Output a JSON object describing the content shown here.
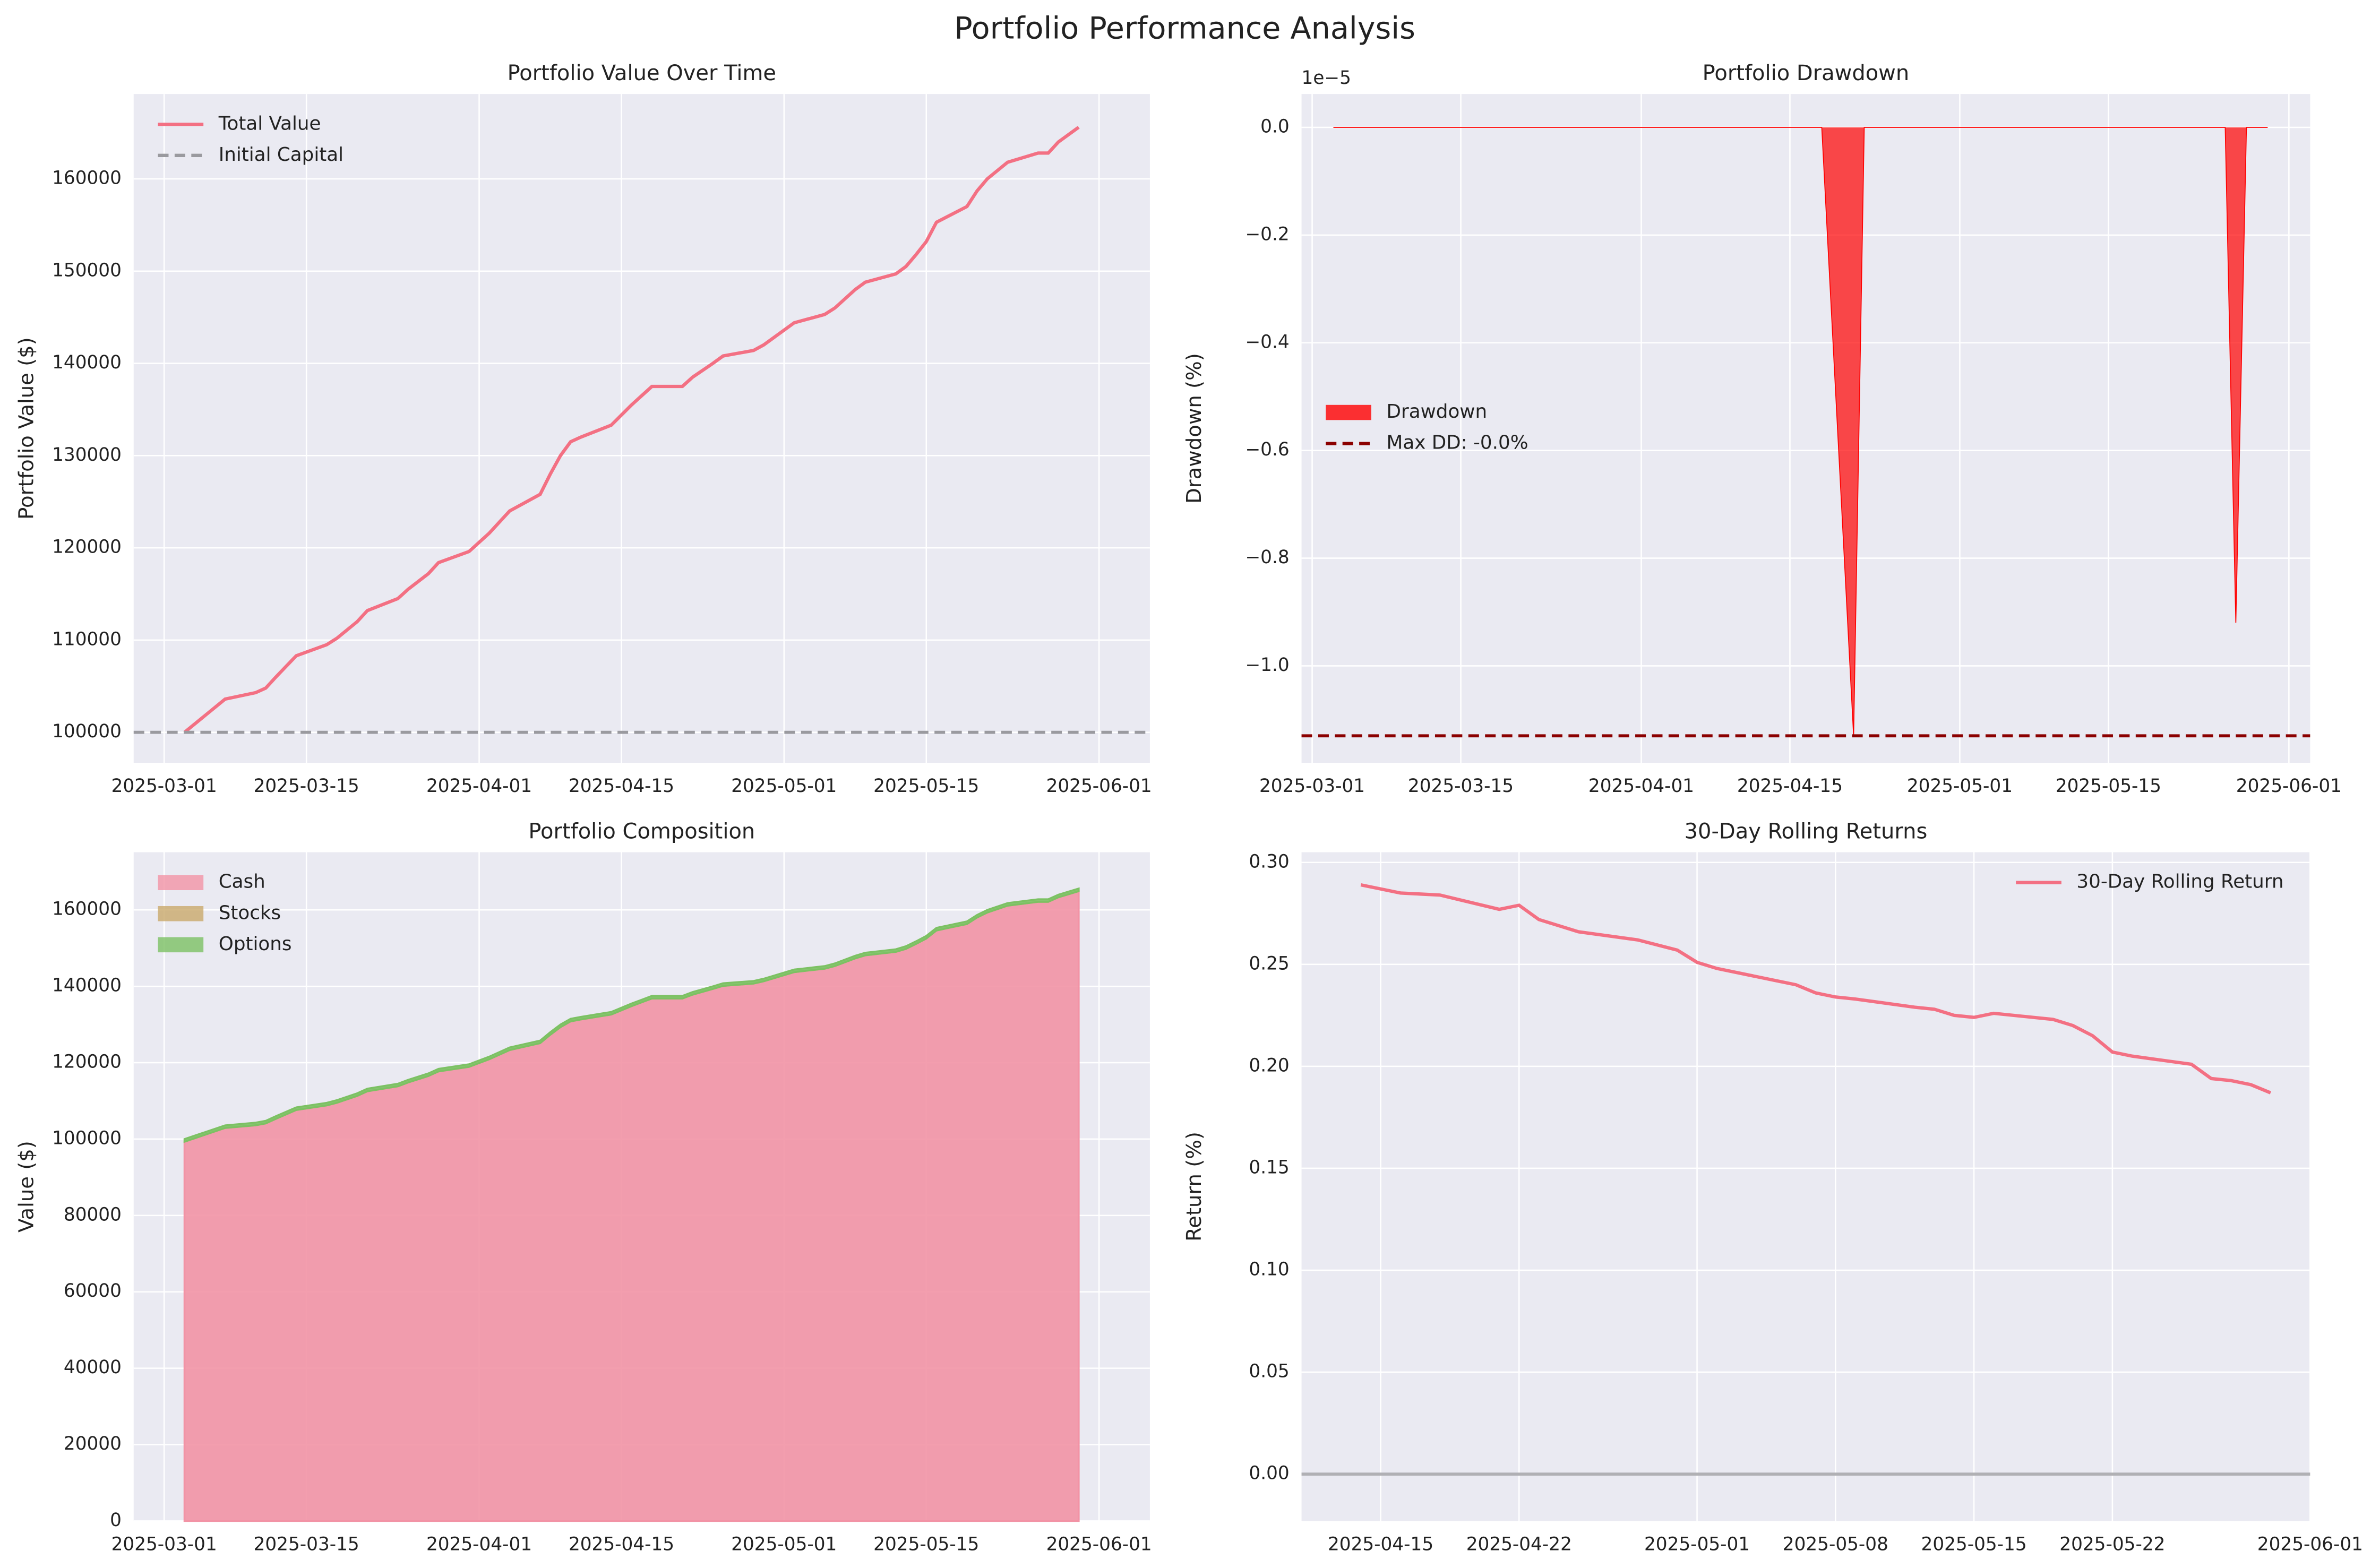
{
  "title": "Portfolio Performance Analysis",
  "chart_data": [
    {
      "type": "line",
      "title": "Portfolio Value Over Time",
      "ylabel": "Portfolio Value ($)",
      "legend": "upper left",
      "grid": true,
      "x": [
        "2025-03-03",
        "2025-03-05",
        "2025-03-07",
        "2025-03-10",
        "2025-03-11",
        "2025-03-12",
        "2025-03-14",
        "2025-03-17",
        "2025-03-18",
        "2025-03-20",
        "2025-03-21",
        "2025-03-24",
        "2025-03-25",
        "2025-03-27",
        "2025-03-28",
        "2025-03-31",
        "2025-04-02",
        "2025-04-04",
        "2025-04-07",
        "2025-04-08",
        "2025-04-09",
        "2025-04-10",
        "2025-04-11",
        "2025-04-14",
        "2025-04-16",
        "2025-04-17",
        "2025-04-18",
        "2025-04-21",
        "2025-04-22",
        "2025-04-24",
        "2025-04-25",
        "2025-04-28",
        "2025-04-29",
        "2025-04-30",
        "2025-05-02",
        "2025-05-05",
        "2025-05-06",
        "2025-05-08",
        "2025-05-09",
        "2025-05-12",
        "2025-05-13",
        "2025-05-14",
        "2025-05-15",
        "2025-05-16",
        "2025-05-19",
        "2025-05-20",
        "2025-05-21",
        "2025-05-23",
        "2025-05-26",
        "2025-05-27",
        "2025-05-28",
        "2025-05-29",
        "2025-05-30"
      ],
      "series": [
        {
          "name": "Total Value",
          "color": "#f37083",
          "values": [
            100000,
            101800,
            103600,
            104300,
            104800,
            106000,
            108300,
            109500,
            110200,
            112000,
            113200,
            114500,
            115500,
            117200,
            118400,
            119600,
            121600,
            124000,
            125800,
            128000,
            130000,
            131500,
            132000,
            133300,
            135500,
            136500,
            137500,
            137500,
            138500,
            140000,
            140800,
            141400,
            142000,
            142800,
            144400,
            145300,
            146000,
            148000,
            148800,
            149700,
            150500,
            151800,
            153200,
            155300,
            157000,
            158700,
            160000,
            161800,
            162800,
            162800,
            164000,
            164800,
            165600
          ]
        }
      ],
      "hlines": [
        {
          "name": "Initial Capital",
          "value": 100000,
          "color": "#9a9a9f",
          "dashed": true
        }
      ],
      "xlim": [
        "2025-02-26",
        "2025-06-06"
      ],
      "xticks": [
        "2025-03-01",
        "2025-03-15",
        "2025-04-01",
        "2025-04-15",
        "2025-05-01",
        "2025-05-15",
        "2025-06-01"
      ],
      "ylim": [
        96700,
        169200
      ],
      "yticks": [
        100000,
        110000,
        120000,
        130000,
        140000,
        150000,
        160000
      ]
    },
    {
      "type": "area",
      "title": "Portfolio Drawdown",
      "ylabel": "Drawdown (%)",
      "offset_text": "1e−5",
      "legend": "center left",
      "grid": true,
      "x": [
        "2025-03-03",
        "2025-04-18",
        "2025-04-21",
        "2025-04-22",
        "2025-05-26",
        "2025-05-27",
        "2025-05-28",
        "2025-05-30"
      ],
      "series": [
        {
          "name": "Drawdown",
          "color": "#ff0000",
          "values": [
            0,
            0,
            -1.13,
            0,
            0,
            -0.92,
            0,
            0
          ]
        }
      ],
      "hlines": [
        {
          "name": "Max DD: -0.0%",
          "value": -1.13,
          "color": "#8b0000",
          "dashed": true
        }
      ],
      "xlim": [
        "2025-02-28",
        "2025-06-03"
      ],
      "xticks": [
        "2025-03-01",
        "2025-03-15",
        "2025-04-01",
        "2025-04-15",
        "2025-05-01",
        "2025-05-15",
        "2025-06-01"
      ],
      "ylim": [
        -1.18,
        0.062
      ],
      "yticks": [
        {
          "value": 0,
          "label": "0.0"
        },
        {
          "value": -0.2,
          "label": "−0.2"
        },
        {
          "value": -0.4,
          "label": "−0.4"
        },
        {
          "value": -0.6,
          "label": "−0.6"
        },
        {
          "value": -0.8,
          "label": "−0.8"
        },
        {
          "value": -1.0,
          "label": "−1.0"
        }
      ]
    },
    {
      "type": "stacked_area",
      "title": "Portfolio Composition",
      "ylabel": "Value ($)",
      "legend": "upper left",
      "grid": true,
      "x": [
        "2025-03-03",
        "2025-03-05",
        "2025-03-07",
        "2025-03-10",
        "2025-03-11",
        "2025-03-12",
        "2025-03-14",
        "2025-03-17",
        "2025-03-18",
        "2025-03-20",
        "2025-03-21",
        "2025-03-24",
        "2025-03-25",
        "2025-03-27",
        "2025-03-28",
        "2025-03-31",
        "2025-04-02",
        "2025-04-04",
        "2025-04-07",
        "2025-04-08",
        "2025-04-09",
        "2025-04-10",
        "2025-04-11",
        "2025-04-14",
        "2025-04-16",
        "2025-04-17",
        "2025-04-18",
        "2025-04-21",
        "2025-04-22",
        "2025-04-24",
        "2025-04-25",
        "2025-04-28",
        "2025-04-29",
        "2025-04-30",
        "2025-05-02",
        "2025-05-05",
        "2025-05-06",
        "2025-05-08",
        "2025-05-09",
        "2025-05-12",
        "2025-05-13",
        "2025-05-14",
        "2025-05-15",
        "2025-05-16",
        "2025-05-19",
        "2025-05-20",
        "2025-05-21",
        "2025-05-23",
        "2025-05-26",
        "2025-05-27",
        "2025-05-28",
        "2025-05-29",
        "2025-05-30"
      ],
      "series": [
        {
          "name": "Cash",
          "color": "#f293a5",
          "values": [
            99300,
            101100,
            102900,
            103600,
            104100,
            105300,
            107600,
            108800,
            109500,
            111300,
            112500,
            113800,
            114800,
            116500,
            117700,
            118900,
            120900,
            123300,
            125100,
            127300,
            129300,
            130800,
            131300,
            132600,
            134800,
            135800,
            136800,
            136800,
            137800,
            139300,
            140100,
            140700,
            141300,
            142100,
            143700,
            144600,
            145300,
            147300,
            148100,
            149000,
            149800,
            151100,
            152500,
            154600,
            156300,
            158000,
            159300,
            161100,
            162100,
            162100,
            163300,
            164100,
            164900
          ]
        },
        {
          "name": "Stocks",
          "color": "#c9a96a",
          "values": [
            0,
            0,
            0,
            0,
            0,
            0,
            0,
            0,
            0,
            0,
            0,
            0,
            0,
            0,
            0,
            0,
            0,
            0,
            0,
            0,
            0,
            0,
            0,
            0,
            0,
            0,
            0,
            0,
            0,
            0,
            0,
            0,
            0,
            0,
            0,
            0,
            0,
            0,
            0,
            0,
            0,
            0,
            0,
            0,
            0,
            0,
            0,
            0,
            0,
            0,
            0,
            0,
            0
          ]
        },
        {
          "name": "Options",
          "color": "#7cc163",
          "values": [
            700,
            700,
            700,
            700,
            700,
            700,
            700,
            700,
            700,
            700,
            700,
            700,
            700,
            700,
            700,
            700,
            700,
            700,
            700,
            700,
            700,
            700,
            700,
            700,
            700,
            700,
            700,
            700,
            700,
            700,
            700,
            700,
            700,
            700,
            700,
            700,
            700,
            700,
            700,
            700,
            700,
            700,
            700,
            700,
            700,
            700,
            700,
            700,
            700,
            700,
            700,
            700,
            700
          ]
        }
      ],
      "xlim": [
        "2025-02-26",
        "2025-06-06"
      ],
      "xticks": [
        "2025-03-01",
        "2025-03-15",
        "2025-04-01",
        "2025-04-15",
        "2025-05-01",
        "2025-05-15",
        "2025-06-01"
      ],
      "ylim": [
        0,
        175100
      ],
      "yticks": [
        0,
        20000,
        40000,
        60000,
        80000,
        100000,
        120000,
        140000,
        160000
      ]
    },
    {
      "type": "line",
      "title": "30-Day Rolling Returns",
      "ylabel": "Return (%)",
      "legend": "upper right",
      "grid": true,
      "x": [
        "2025-04-14",
        "2025-04-15",
        "2025-04-16",
        "2025-04-17",
        "2025-04-18",
        "2025-04-21",
        "2025-04-22",
        "2025-04-23",
        "2025-04-25",
        "2025-04-28",
        "2025-04-30",
        "2025-05-01",
        "2025-05-02",
        "2025-05-05",
        "2025-05-06",
        "2025-05-07",
        "2025-05-08",
        "2025-05-09",
        "2025-05-12",
        "2025-05-13",
        "2025-05-14",
        "2025-05-15",
        "2025-05-16",
        "2025-05-19",
        "2025-05-20",
        "2025-05-21",
        "2025-05-22",
        "2025-05-23",
        "2025-05-26",
        "2025-05-27",
        "2025-05-28",
        "2025-05-29",
        "2025-05-30"
      ],
      "series": [
        {
          "name": "30-Day Rolling Return",
          "color": "#f37083",
          "values": [
            0.289,
            0.287,
            0.285,
            0.2845,
            0.284,
            0.277,
            0.279,
            0.272,
            0.266,
            0.262,
            0.257,
            0.251,
            0.248,
            0.242,
            0.24,
            0.236,
            0.234,
            0.233,
            0.229,
            0.228,
            0.225,
            0.224,
            0.226,
            0.223,
            0.22,
            0.215,
            0.207,
            0.205,
            0.201,
            0.194,
            0.193,
            0.191,
            0.187
          ]
        }
      ],
      "hlines": [
        {
          "value": 0,
          "color": "#b0b0b4"
        }
      ],
      "xlim": [
        "2025-04-11",
        "2025-06-01"
      ],
      "xticks": [
        "2025-04-15",
        "2025-04-22",
        "2025-05-01",
        "2025-05-08",
        "2025-05-15",
        "2025-05-22",
        "2025-06-01"
      ],
      "ylim": [
        -0.023,
        0.305
      ],
      "yticks": [
        {
          "value": 0,
          "label": "0.00"
        },
        {
          "value": 0.05,
          "label": "0.05"
        },
        {
          "value": 0.1,
          "label": "0.10"
        },
        {
          "value": 0.15,
          "label": "0.15"
        },
        {
          "value": 0.2,
          "label": "0.20"
        },
        {
          "value": 0.25,
          "label": "0.25"
        },
        {
          "value": 0.3,
          "label": "0.30"
        }
      ]
    }
  ]
}
